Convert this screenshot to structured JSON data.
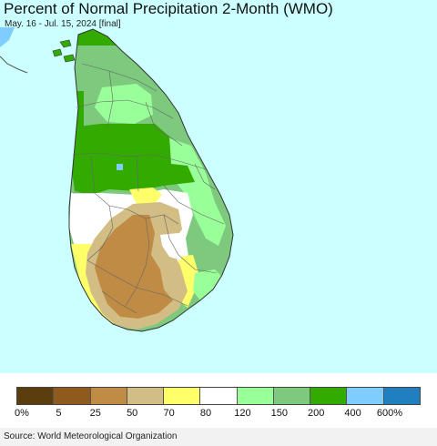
{
  "title": "Percent of Normal Precipitation 2-Month (WMO)",
  "subtitle": "May. 16 - Jul. 15, 2024 [final]",
  "source": "Source: World Meteorological Organization",
  "legend": {
    "colors": [
      "#5c3d0e",
      "#8f5a1e",
      "#c08c45",
      "#d2bd84",
      "#ffff6a",
      "#ffffff",
      "#99ff99",
      "#7dc97d",
      "#33aa00",
      "#7fccff",
      "#1f7fbf"
    ],
    "labels": [
      "0%",
      "5",
      "25",
      "50",
      "70",
      "80",
      "120",
      "150",
      "200",
      "400",
      "600%"
    ]
  },
  "map": {
    "ocean_color": "#ccffff",
    "boundary_color": "#555555"
  }
}
